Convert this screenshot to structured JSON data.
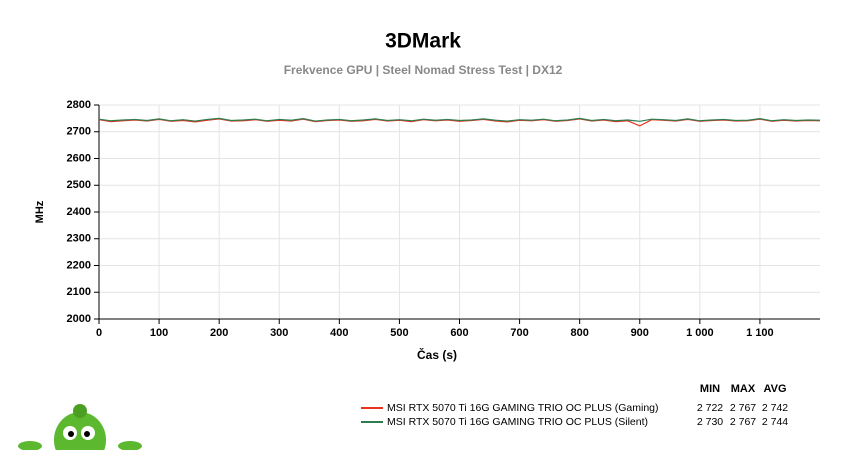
{
  "chart_data": {
    "type": "line",
    "title": "3DMark",
    "subtitle": "Frekvence GPU | Steel Nomad Stress Test | DX12",
    "x_label": "Čas (s)",
    "y_label": "MHz",
    "xlim": [
      0,
      1200
    ],
    "ylim": [
      2000,
      2800
    ],
    "xticks": [
      0,
      100,
      200,
      300,
      400,
      500,
      600,
      700,
      800,
      900,
      {
        "value": 1000,
        "label": "1 000"
      },
      {
        "value": 1100,
        "label": "1 100"
      }
    ],
    "yticks": [
      2000,
      2100,
      2200,
      2300,
      2400,
      2500,
      2600,
      2700,
      2800
    ],
    "grid": true,
    "x": [
      0,
      20,
      40,
      60,
      80,
      100,
      120,
      140,
      160,
      180,
      200,
      220,
      240,
      260,
      280,
      300,
      320,
      340,
      360,
      380,
      400,
      420,
      440,
      460,
      480,
      500,
      520,
      540,
      560,
      580,
      600,
      620,
      640,
      660,
      680,
      700,
      720,
      740,
      760,
      780,
      800,
      820,
      840,
      860,
      880,
      900,
      920,
      940,
      960,
      980,
      1000,
      1020,
      1040,
      1060,
      1080,
      1100,
      1120,
      1140,
      1160,
      1180,
      1200
    ],
    "stats_headers": [
      "MIN",
      "MAX",
      "AVG"
    ],
    "series": [
      {
        "name": "MSI RTX 5070 Ti 16G GAMING TRIO OC PLUS (Gaming)",
        "color": "#e8321e",
        "values": [
          2745,
          2738,
          2741,
          2744,
          2740,
          2746,
          2739,
          2742,
          2737,
          2743,
          2748,
          2740,
          2741,
          2745,
          2739,
          2743,
          2740,
          2747,
          2738,
          2742,
          2744,
          2739,
          2741,
          2746,
          2740,
          2743,
          2738,
          2745,
          2741,
          2744,
          2739,
          2742,
          2746,
          2740,
          2737,
          2743,
          2741,
          2745,
          2739,
          2742,
          2748,
          2740,
          2744,
          2738,
          2741,
          2722,
          2745,
          2743,
          2740,
          2746,
          2739,
          2742,
          2744,
          2740,
          2741,
          2747,
          2739,
          2743,
          2740,
          2742,
          2741
        ],
        "stats": [
          {
            "value": 2722,
            "label": "2 722"
          },
          {
            "value": 2767,
            "label": "2 767"
          },
          {
            "value": 2742,
            "label": "2 742"
          }
        ]
      },
      {
        "name": "MSI RTX 5070 Ti 16G GAMING TRIO OC PLUS (Silent)",
        "color": "#2e7d4f",
        "values": [
          2747,
          2741,
          2744,
          2746,
          2742,
          2748,
          2741,
          2745,
          2740,
          2746,
          2750,
          2742,
          2744,
          2747,
          2741,
          2746,
          2743,
          2749,
          2740,
          2744,
          2746,
          2741,
          2744,
          2748,
          2742,
          2745,
          2741,
          2747,
          2743,
          2746,
          2742,
          2744,
          2748,
          2743,
          2740,
          2745,
          2743,
          2747,
          2741,
          2744,
          2750,
          2742,
          2746,
          2741,
          2744,
          2739,
          2747,
          2745,
          2742,
          2748,
          2741,
          2744,
          2746,
          2742,
          2743,
          2749,
          2741,
          2745,
          2742,
          2744,
          2743
        ],
        "stats": [
          {
            "value": 2730,
            "label": "2 730"
          },
          {
            "value": 2767,
            "label": "2 767"
          },
          {
            "value": 2744,
            "label": "2 744"
          }
        ]
      }
    ]
  }
}
